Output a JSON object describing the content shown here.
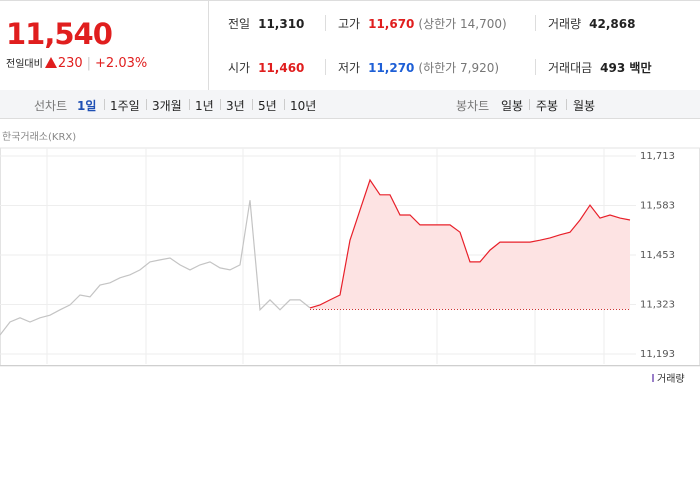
{
  "header": {
    "price": "11,540",
    "change_label": "전일대비",
    "change": "230",
    "change_pct": "+2.03%"
  },
  "info": [
    {
      "label": "전일",
      "value": "11,310",
      "color": "#222222"
    },
    {
      "label": "고가",
      "value": "11,670",
      "note": "(상한가 14,700)",
      "color": "#e01e1e"
    },
    {
      "label": "거래량",
      "value": "42,868",
      "color": "#222222"
    },
    {
      "label": "시가",
      "value": "11,460",
      "color": "#e01e1e"
    },
    {
      "label": "저가",
      "value": "11,270",
      "note": "(하한가 7,920)",
      "color": "#1e5fd6"
    },
    {
      "label": "거래대금",
      "value": "493 백만",
      "color": "#222222"
    }
  ],
  "tabs": {
    "line_label": "선차트",
    "line": [
      "1일",
      "1주일",
      "3개월",
      "1년",
      "3년",
      "5년",
      "10년"
    ],
    "candle_label": "봉차트",
    "candle": [
      "일봉",
      "주봉",
      "월봉"
    ]
  },
  "chart_data": {
    "type": "line",
    "source": "한국거래소(KRX)",
    "legend": "거래량",
    "reference_line": 11310,
    "ylim": [
      11193,
      11713
    ],
    "yticks": [
      {
        "value": 11713,
        "label": "11,713"
      },
      {
        "value": 11583,
        "label": "11,583"
      },
      {
        "value": 11453,
        "label": "11,453"
      },
      {
        "value": 11323,
        "label": "11,323"
      },
      {
        "value": 11193,
        "label": "11,193"
      }
    ],
    "series": [
      {
        "color": "#c4c4c4",
        "values": [
          11243,
          11277,
          11288,
          11277,
          11288,
          11295,
          11309,
          11322,
          11348,
          11343,
          11374,
          11380,
          11393,
          11401,
          11414,
          11435,
          11440,
          11445,
          11427,
          11414,
          11427,
          11435,
          11419,
          11414,
          11427,
          11597,
          11309,
          11335,
          11309,
          11335,
          11335,
          11314,
          null,
          null,
          null,
          null,
          null,
          null,
          null,
          null,
          null,
          null,
          null,
          null,
          null,
          null,
          null,
          null,
          null,
          null,
          null,
          null,
          null,
          null,
          null,
          null,
          null,
          null,
          null,
          null,
          null,
          null,
          null,
          null
        ]
      },
      {
        "color": "#e8202a",
        "values": [
          null,
          null,
          null,
          null,
          null,
          null,
          null,
          null,
          null,
          null,
          null,
          null,
          null,
          null,
          null,
          null,
          null,
          null,
          null,
          null,
          null,
          null,
          null,
          null,
          null,
          null,
          null,
          null,
          null,
          null,
          null,
          11314,
          11322,
          11335,
          11348,
          11492,
          11571,
          11650,
          11611,
          11611,
          11558,
          11558,
          11532,
          11532,
          11532,
          11532,
          11513,
          11435,
          11435,
          11466,
          11487,
          11487,
          11487,
          11487,
          11492,
          11498,
          11506,
          11513,
          11545,
          11584,
          11550,
          11558,
          11550,
          11545
        ]
      }
    ]
  }
}
